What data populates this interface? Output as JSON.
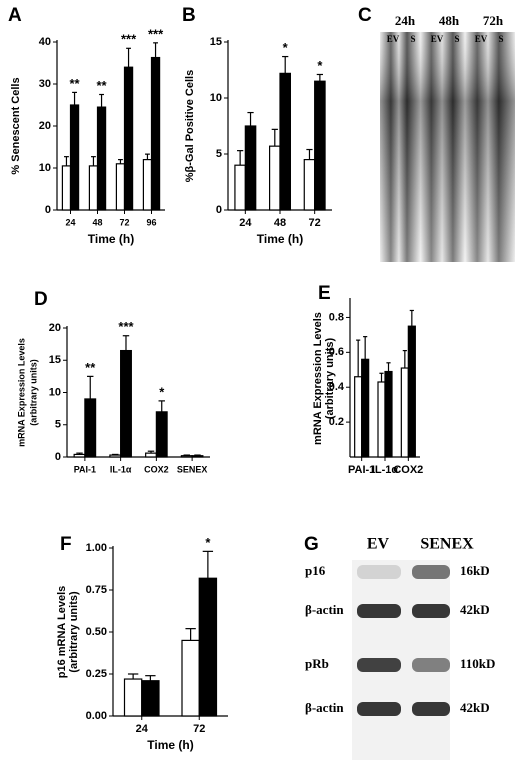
{
  "chart_data": [
    {
      "type": "bar",
      "label": "A",
      "xlabel": "Time (h)",
      "ylabel": [
        "% Senescent Cells"
      ],
      "categories": [
        "24",
        "48",
        "72",
        "96"
      ],
      "ylim": [
        0,
        40
      ],
      "yticks": [
        0,
        10,
        20,
        30,
        40
      ],
      "series": [
        {
          "color": "#ffffff",
          "values": [
            10.5,
            10.5,
            11,
            12
          ],
          "errors": [
            2.2,
            2.2,
            1,
            1.3
          ]
        },
        {
          "color": "#000000",
          "values": [
            25,
            24.5,
            34,
            36.3
          ],
          "errors": [
            3,
            3,
            4.5,
            3.5
          ]
        }
      ],
      "annotations": [
        "**",
        "**",
        "***",
        "***"
      ]
    },
    {
      "type": "bar",
      "label": "B",
      "xlabel": "Time (h)",
      "ylabel": [
        "%β-Gal Positive Cells"
      ],
      "categories": [
        "24",
        "48",
        "72"
      ],
      "ylim": [
        0,
        15
      ],
      "yticks": [
        0,
        5,
        10,
        15
      ],
      "series": [
        {
          "color": "#ffffff",
          "values": [
            4,
            5.7,
            4.5
          ],
          "errors": [
            1.3,
            1.5,
            0.9
          ]
        },
        {
          "color": "#000000",
          "values": [
            7.5,
            12.2,
            11.5
          ],
          "errors": [
            1.2,
            1.5,
            0.6
          ]
        }
      ],
      "annotations": [
        null,
        "*",
        "*"
      ]
    },
    {
      "type": "bar",
      "label": "D",
      "ylabel": [
        "mRNA Expression Levels",
        "(arbitrary units)"
      ],
      "categories": [
        "PAI-1",
        "IL-1α",
        "COX2",
        "SENEX"
      ],
      "ylim": [
        0,
        20
      ],
      "yticks": [
        0,
        5,
        10,
        15,
        20
      ],
      "series": [
        {
          "color": "#ffffff",
          "values": [
            0.4,
            0.3,
            0.6,
            0.2
          ],
          "errors": [
            0.2,
            0.1,
            0.3,
            0.1
          ]
        },
        {
          "color": "#000000",
          "values": [
            9,
            16.5,
            7,
            0.2
          ],
          "errors": [
            3.5,
            2.3,
            1.7,
            0.1
          ]
        }
      ],
      "annotations": [
        "**",
        "***",
        "*",
        null
      ]
    },
    {
      "type": "bar",
      "label": "E",
      "ylabel": [
        "mRNA Expression Levels",
        "(arbitrary units)"
      ],
      "categories": [
        "PAI-1",
        "IL-1α",
        "COX2"
      ],
      "ylim": [
        0,
        0.9
      ],
      "yticks": [
        0.2,
        0.4,
        0.6,
        0.8
      ],
      "series": [
        {
          "color": "#ffffff",
          "values": [
            0.46,
            0.43,
            0.51
          ],
          "errors": [
            0.21,
            0.05,
            0.1
          ]
        },
        {
          "color": "#000000",
          "values": [
            0.56,
            0.49,
            0.75
          ],
          "errors": [
            0.13,
            0.05,
            0.09
          ]
        }
      ],
      "annotations": [
        null,
        null,
        null
      ]
    },
    {
      "type": "bar",
      "label": "F",
      "xlabel": "Time (h)",
      "ylabel": [
        "p16 mRNA Levels",
        "(arbitrary units)"
      ],
      "categories": [
        "24",
        "72"
      ],
      "ylim": [
        0,
        1
      ],
      "yticks": [
        {
          "value": 0,
          "label": "0.00"
        },
        {
          "value": 0.25,
          "label": "0.25"
        },
        {
          "value": 0.5,
          "label": "0.50"
        },
        {
          "value": 0.75,
          "label": "0.75"
        },
        {
          "value": 1,
          "label": "1.00"
        }
      ],
      "series": [
        {
          "color": "#ffffff",
          "values": [
            0.22,
            0.45
          ],
          "errors": [
            0.03,
            0.07
          ]
        },
        {
          "color": "#000000",
          "values": [
            0.21,
            0.82
          ],
          "errors": [
            0.03,
            0.16
          ]
        }
      ],
      "annotations": [
        null,
        "*"
      ]
    }
  ],
  "gel_c": {
    "label": "C",
    "times": [
      "24h",
      "48h",
      "72h"
    ],
    "lanes": [
      "EV",
      "S",
      "EV",
      "S",
      "EV",
      "S"
    ]
  },
  "blot_g": {
    "label": "G",
    "groups": [
      "EV",
      "SENEX"
    ],
    "rows": [
      {
        "name": "p16",
        "size": "16kD"
      },
      {
        "name": "β-actin",
        "size": "42kD"
      },
      {
        "name": "pRb",
        "size": "110kD"
      },
      {
        "name": "β-actin",
        "size": "42kD"
      }
    ]
  }
}
